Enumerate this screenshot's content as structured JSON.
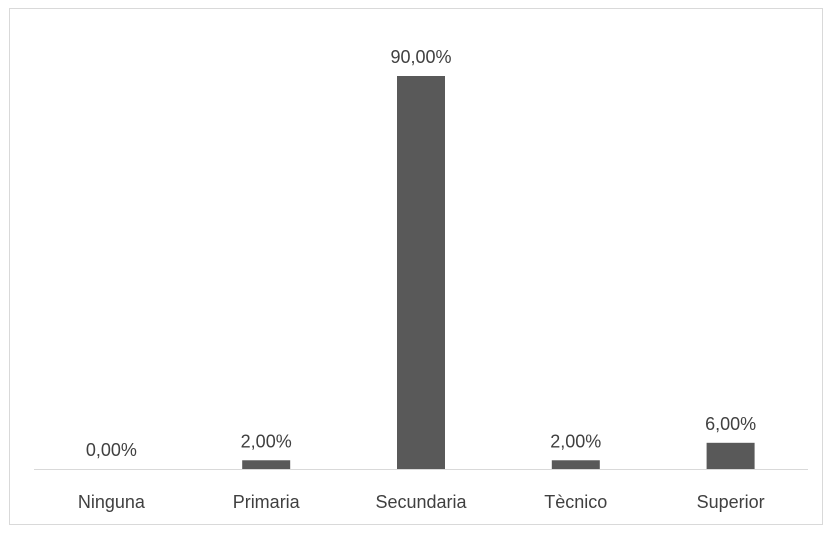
{
  "chart_data": {
    "type": "bar",
    "title": "",
    "xlabel": "",
    "ylabel": "",
    "categories": [
      "Ninguna",
      "Primaria",
      "Secundaria",
      "Tècnico",
      "Superior"
    ],
    "values": [
      0,
      2,
      90,
      2,
      6
    ],
    "data_labels": [
      "0,00%",
      "2,00%",
      "90,00%",
      "2,00%",
      "6,00%"
    ],
    "ylim": [
      0,
      90
    ],
    "grid": false,
    "legend": "none",
    "colors": {
      "bar": "#595959",
      "axis": "#d9d9d9",
      "text": "#404040",
      "border": "#d9d9d9"
    }
  }
}
